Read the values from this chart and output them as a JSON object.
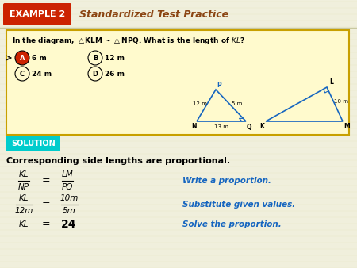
{
  "bg_color": "#f0efdc",
  "header_bg": "#f0efdc",
  "example_box_color": "#cc2200",
  "example_text": "EXAMPLE 2",
  "header_title": "Standardized Test Practice",
  "header_title_color": "#8B4513",
  "question_box_bg": "#fffacd",
  "question_box_border": "#c8a000",
  "solution_bg": "#00cccc",
  "solution_text": "SOLUTION",
  "solution_text_color": "white",
  "prop_text": "Corresponding side lengths are proportional.",
  "blue_color": "#1565c0",
  "line1_comment": "Write a proportion.",
  "line2_comment": "Substitute given values.",
  "line3_comment": "Solve the proportion.",
  "tri1_color": "#1565c0",
  "tri2_color": "#1565c0"
}
